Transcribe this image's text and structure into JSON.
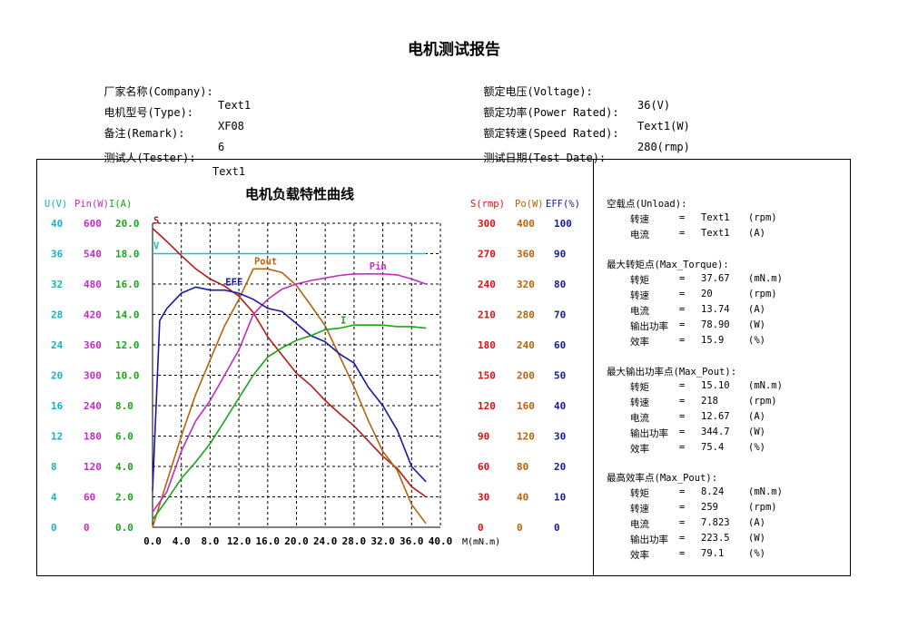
{
  "report": {
    "title": "电机测试报告",
    "info_left": [
      {
        "label": "厂家名称(Company):",
        "value": "Text1"
      },
      {
        "label": "电机型号(Type):",
        "value": "XF08"
      },
      {
        "label": "备注(Remark):",
        "value": "6"
      },
      {
        "label": "测试人(Tester):",
        "value": "Text1"
      }
    ],
    "info_right": [
      {
        "label": "额定电压(Voltage):",
        "value": "36(V)"
      },
      {
        "label": "额定功率(Power Rated):",
        "value": "Text1(W)"
      },
      {
        "label": "额定转速(Speed Rated):",
        "value": "280(rmp)"
      },
      {
        "label": "测试日期(Test Date):",
        "value": ""
      }
    ]
  },
  "chart_data": {
    "type": "line",
    "title": "电机负载特性曲线",
    "xlabel": "M(mN.m)",
    "x_ticks": [
      "0.0",
      "4.0",
      "8.0",
      "12.0",
      "16.0",
      "20.0",
      "24.0",
      "28.0",
      "32.0",
      "36.0",
      "40.0"
    ],
    "xlim": [
      0,
      40
    ],
    "grid": true,
    "axes_left": [
      {
        "header": "U(V)",
        "color": "#12b5c4",
        "ticks": [
          "0",
          "4",
          "8",
          "12",
          "16",
          "20",
          "24",
          "28",
          "32",
          "36",
          "40"
        ]
      },
      {
        "header": "Pin(W)",
        "color": "#c42bc4",
        "ticks": [
          "0",
          "60",
          "120",
          "180",
          "240",
          "300",
          "360",
          "420",
          "480",
          "540",
          "600"
        ]
      },
      {
        "header": "I(A)",
        "color": "#1aa51a",
        "ticks": [
          "0.0",
          "2.0",
          "4.0",
          "6.0",
          "8.0",
          "10.0",
          "12.0",
          "14.0",
          "16.0",
          "18.0",
          "20.0"
        ]
      }
    ],
    "axes_right": [
      {
        "header": "S(rmp)",
        "color": "#e01010",
        "ticks": [
          "0",
          "30",
          "60",
          "90",
          "120",
          "150",
          "180",
          "210",
          "240",
          "270",
          "300"
        ]
      },
      {
        "header": "Po(W)",
        "color": "#b8620a",
        "ticks": [
          "0",
          "40",
          "80",
          "120",
          "160",
          "200",
          "240",
          "280",
          "320",
          "360",
          "400"
        ]
      },
      {
        "header": "EFF(%)",
        "color": "#1818a8",
        "ticks": [
          "0",
          "10",
          "20",
          "30",
          "40",
          "50",
          "60",
          "70",
          "80",
          "90",
          "100"
        ]
      }
    ],
    "series": [
      {
        "name": "U",
        "label": "V",
        "color": "#12c4c4",
        "axis": "U(V)",
        "x": [
          0,
          38
        ],
        "y": [
          36,
          36
        ]
      },
      {
        "name": "S",
        "label": "S",
        "color": "#b81818",
        "axis": "S(rmp)",
        "x": [
          0,
          2,
          4,
          6,
          8,
          10,
          12,
          14,
          16,
          18,
          20,
          22,
          24,
          26,
          28,
          30,
          32,
          34,
          36,
          38
        ],
        "y": [
          295,
          282,
          268,
          255,
          245,
          238,
          228,
          212,
          188,
          170,
          152,
          140,
          125,
          112,
          100,
          85,
          70,
          58,
          40,
          30
        ]
      },
      {
        "name": "Pout",
        "label": "Pout",
        "color": "#b8620a",
        "axis": "Po(W)",
        "x": [
          0,
          2,
          4,
          6,
          8,
          10,
          12,
          14,
          16,
          18,
          20,
          22,
          24,
          26,
          28,
          30,
          32,
          34,
          36,
          38
        ],
        "y": [
          0,
          60,
          120,
          175,
          220,
          265,
          300,
          340,
          340,
          335,
          318,
          292,
          265,
          225,
          185,
          140,
          100,
          75,
          30,
          5
        ]
      },
      {
        "name": "Pin",
        "label": "Pin",
        "color": "#c42bc4",
        "axis": "Pin(W)",
        "x": [
          0,
          2,
          4,
          6,
          8,
          10,
          12,
          14,
          16,
          18,
          20,
          22,
          24,
          26,
          28,
          30,
          32,
          34,
          36,
          38
        ],
        "y": [
          30,
          70,
          150,
          210,
          250,
          300,
          350,
          420,
          450,
          470,
          480,
          487,
          492,
          497,
          500,
          500,
          500,
          498,
          490,
          480
        ]
      },
      {
        "name": "EFF",
        "label": "EFF",
        "color": "#1818a8",
        "axis": "EFF(%)",
        "x": [
          0,
          1,
          2,
          4,
          6,
          8,
          10,
          12,
          14,
          16,
          18,
          20,
          22,
          24,
          26,
          28,
          30,
          32,
          34,
          36,
          38
        ],
        "y": [
          12,
          68,
          72,
          77,
          79,
          78,
          78,
          77,
          75,
          72,
          71,
          67,
          63,
          61,
          57,
          54,
          46,
          40,
          32,
          20,
          15
        ]
      },
      {
        "name": "I",
        "label": "I",
        "color": "#1aa51a",
        "axis": "I(A)",
        "x": [
          0,
          2,
          4,
          6,
          8,
          10,
          12,
          14,
          16,
          18,
          20,
          22,
          24,
          26,
          28,
          30,
          32,
          34,
          36,
          38
        ],
        "y": [
          0.5,
          1.8,
          3.2,
          4.3,
          5.5,
          7.0,
          8.5,
          10.0,
          11.2,
          11.8,
          12.3,
          12.6,
          13.0,
          13.1,
          13.3,
          13.3,
          13.3,
          13.2,
          13.2,
          13.1
        ]
      }
    ]
  },
  "results": [
    {
      "title": "空载点(Unload):",
      "rows": [
        {
          "k": "转速",
          "v": "Text1",
          "u": "(rpm)"
        },
        {
          "k": "电流",
          "v": "Text1",
          "u": "(A)"
        }
      ]
    },
    {
      "title": "最大转矩点(Max_Torque):",
      "rows": [
        {
          "k": "转矩",
          "v": "37.67",
          "u": "(mN.m)"
        },
        {
          "k": "转速",
          "v": "20",
          "u": "(rpm)"
        },
        {
          "k": "电流",
          "v": "13.74",
          "u": "(A)"
        },
        {
          "k": "输出功率",
          "v": "78.90",
          "u": "(W)"
        },
        {
          "k": "效率",
          "v": "15.9",
          "u": "(%)"
        }
      ]
    },
    {
      "title": "最大输出功率点(Max_Pout):",
      "rows": [
        {
          "k": "转矩",
          "v": "15.10",
          "u": "(mN.m)"
        },
        {
          "k": "转速",
          "v": "218",
          "u": "(rpm)"
        },
        {
          "k": "电流",
          "v": "12.67",
          "u": "(A)"
        },
        {
          "k": "输出功率",
          "v": "344.7",
          "u": "(W)"
        },
        {
          "k": "效率",
          "v": "75.4",
          "u": "(%)"
        }
      ]
    },
    {
      "title": "最高效率点(Max_Pout):",
      "rows": [
        {
          "k": "转矩",
          "v": "8.24",
          "u": "(mN.m)"
        },
        {
          "k": "转速",
          "v": "259",
          "u": "(rpm)"
        },
        {
          "k": "电流",
          "v": "7.823",
          "u": "(A)"
        },
        {
          "k": "输出功率",
          "v": "223.5",
          "u": "(W)"
        },
        {
          "k": "效率",
          "v": "79.1",
          "u": "(%)"
        }
      ]
    }
  ]
}
